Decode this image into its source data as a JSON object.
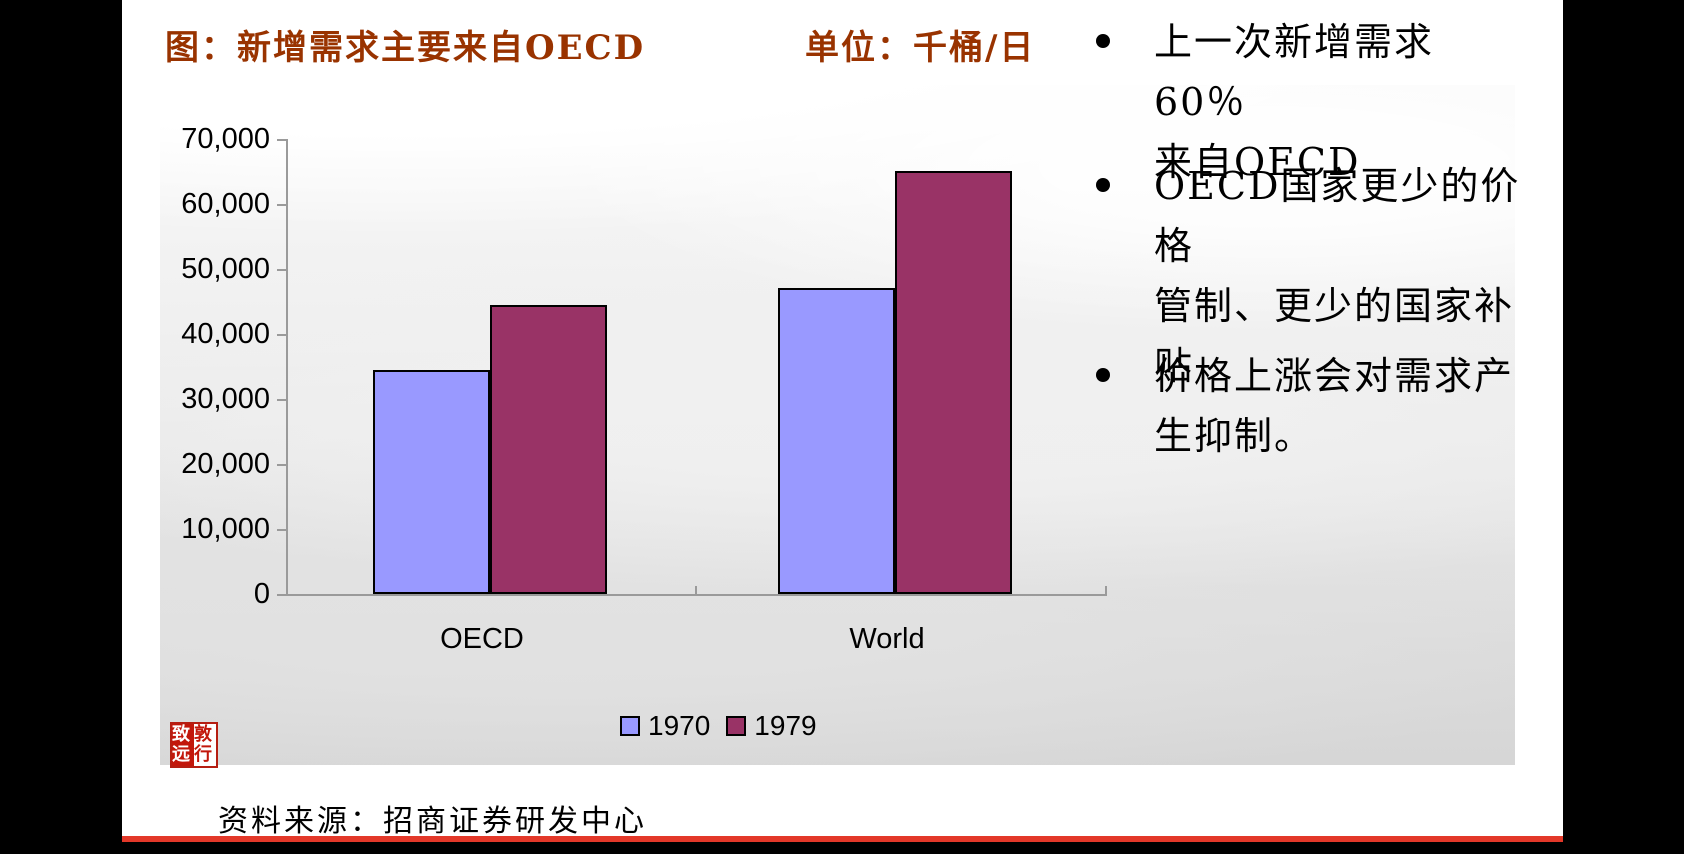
{
  "slide": {
    "title": "图：新增需求主要来自OECD",
    "unit_label": "单位：千桶/日",
    "bullets": [
      "上一次新增需求60％\n来自OECD",
      "OECD国家更少的价格\n管制、更少的国家补\n贴",
      "价格上涨会对需求产\n生抑制。"
    ],
    "source": "资料来源：招商证券研发中心",
    "seal": {
      "text": "敦行致远",
      "left_column": "致远",
      "right_column": "敦行"
    }
  },
  "chart_data": {
    "type": "bar",
    "title": "图：新增需求主要来自OECD",
    "unit": "千桶/日",
    "categories": [
      "OECD",
      "World"
    ],
    "series": [
      {
        "name": "1970",
        "color": "#9999FF",
        "values": [
          34500,
          47000
        ]
      },
      {
        "name": "1979",
        "color": "#993366",
        "values": [
          44500,
          65000
        ]
      }
    ],
    "ylim": [
      0,
      70000
    ],
    "ytick_interval": 10000,
    "ytick_labels": [
      "0",
      "10,000",
      "20,000",
      "30,000",
      "40,000",
      "50,000",
      "60,000",
      "70,000"
    ],
    "legend_position": "bottom",
    "grid": false
  },
  "colors": {
    "title_accent": "#993300",
    "bottom_accent_line": "#e33829",
    "series_1970": "#9999FF",
    "series_1979": "#993366",
    "seal_red": "#c2170b"
  }
}
